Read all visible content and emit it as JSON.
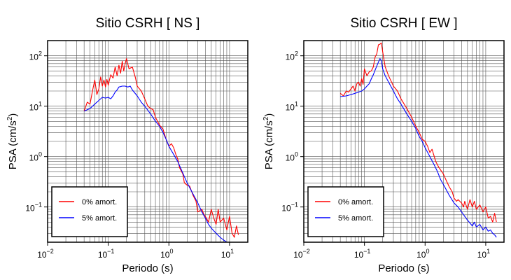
{
  "chart_data": [
    {
      "type": "line",
      "title": "Sitio CSRH [ NS ]",
      "xlabel": "Periodo (s)",
      "ylabel": "PSA (cm/s2)",
      "xscale": "log",
      "yscale": "log",
      "xlim": [
        0.01,
        20
      ],
      "ylim": [
        0.02,
        200
      ],
      "grid": true,
      "legend_position": "bottom-left",
      "xticks": [
        {
          "base": "10",
          "exp": "−2"
        },
        {
          "base": "10",
          "exp": "−1"
        },
        {
          "base": "10",
          "exp": "0"
        },
        {
          "base": "10",
          "exp": "1"
        }
      ],
      "yticks": [
        {
          "base": "10",
          "exp": "−1"
        },
        {
          "base": "10",
          "exp": "0"
        },
        {
          "base": "10",
          "exp": "1"
        },
        {
          "base": "10",
          "exp": "2"
        }
      ],
      "series": [
        {
          "name": "0% amort.",
          "color": "#ff0000",
          "points": [
            [
              0.04,
              8
            ],
            [
              0.045,
              12
            ],
            [
              0.05,
              11
            ],
            [
              0.055,
              20
            ],
            [
              0.06,
              33
            ],
            [
              0.065,
              17
            ],
            [
              0.07,
              22
            ],
            [
              0.075,
              38
            ],
            [
              0.08,
              25
            ],
            [
              0.085,
              33
            ],
            [
              0.09,
              24
            ],
            [
              0.095,
              34
            ],
            [
              0.1,
              26
            ],
            [
              0.11,
              42
            ],
            [
              0.12,
              36
            ],
            [
              0.13,
              60
            ],
            [
              0.14,
              40
            ],
            [
              0.15,
              65
            ],
            [
              0.16,
              45
            ],
            [
              0.17,
              78
            ],
            [
              0.18,
              50
            ],
            [
              0.19,
              70
            ],
            [
              0.2,
              88
            ],
            [
              0.22,
              55
            ],
            [
              0.25,
              60
            ],
            [
              0.28,
              37
            ],
            [
              0.3,
              25
            ],
            [
              0.35,
              20
            ],
            [
              0.4,
              14
            ],
            [
              0.45,
              10
            ],
            [
              0.5,
              9
            ],
            [
              0.55,
              8.5
            ],
            [
              0.6,
              6
            ],
            [
              0.65,
              5
            ],
            [
              0.7,
              4.2
            ],
            [
              0.8,
              3.5
            ],
            [
              0.9,
              2.2
            ],
            [
              1.0,
              1.6
            ],
            [
              1.1,
              1.8
            ],
            [
              1.2,
              1.5
            ],
            [
              1.3,
              1.1
            ],
            [
              1.4,
              0.9
            ],
            [
              1.5,
              0.6
            ],
            [
              1.7,
              0.45
            ],
            [
              1.8,
              0.3
            ],
            [
              2.0,
              0.27
            ],
            [
              2.2,
              0.26
            ],
            [
              2.5,
              0.17
            ],
            [
              2.8,
              0.13
            ],
            [
              3.0,
              0.08
            ],
            [
              3.5,
              0.09
            ],
            [
              3.8,
              0.07
            ],
            [
              4.0,
              0.065
            ],
            [
              4.5,
              0.05
            ],
            [
              5.0,
              0.09
            ],
            [
              5.5,
              0.06
            ],
            [
              6.0,
              0.045
            ],
            [
              6.5,
              0.09
            ],
            [
              7.0,
              0.05
            ],
            [
              8.0,
              0.06
            ],
            [
              9.0,
              0.035
            ],
            [
              10,
              0.065
            ],
            [
              11,
              0.03
            ],
            [
              12,
              0.025
            ],
            [
              13,
              0.042
            ],
            [
              14,
              0.028
            ]
          ]
        },
        {
          "name": "5% amort.",
          "color": "#0000ff",
          "points": [
            [
              0.04,
              8
            ],
            [
              0.05,
              9
            ],
            [
              0.06,
              11
            ],
            [
              0.07,
              13
            ],
            [
              0.08,
              15
            ],
            [
              0.09,
              14.5
            ],
            [
              0.1,
              15
            ],
            [
              0.11,
              14
            ],
            [
              0.12,
              16
            ],
            [
              0.13,
              19
            ],
            [
              0.14,
              21
            ],
            [
              0.15,
              24
            ],
            [
              0.17,
              25
            ],
            [
              0.19,
              25
            ],
            [
              0.21,
              24
            ],
            [
              0.23,
              25
            ],
            [
              0.25,
              21
            ],
            [
              0.3,
              16
            ],
            [
              0.35,
              12
            ],
            [
              0.4,
              10
            ],
            [
              0.5,
              7
            ],
            [
              0.6,
              5
            ],
            [
              0.7,
              4
            ],
            [
              0.8,
              3
            ],
            [
              0.9,
              2.2
            ],
            [
              1.0,
              1.6
            ],
            [
              1.2,
              1.1
            ],
            [
              1.4,
              0.8
            ],
            [
              1.6,
              0.55
            ],
            [
              1.8,
              0.4
            ],
            [
              2.0,
              0.3
            ],
            [
              2.5,
              0.18
            ],
            [
              3.0,
              0.12
            ],
            [
              3.5,
              0.08
            ],
            [
              4.0,
              0.06
            ],
            [
              4.5,
              0.045
            ],
            [
              5.0,
              0.038
            ],
            [
              6.0,
              0.03
            ],
            [
              7.0,
              0.025
            ],
            [
              8.0,
              0.022
            ],
            [
              9.0,
              0.02
            ]
          ]
        }
      ]
    },
    {
      "type": "line",
      "title": "Sitio CSRH [ EW ]",
      "xlabel": "Periodo (s)",
      "ylabel": "PSA (cm/s2)",
      "xscale": "log",
      "yscale": "log",
      "xlim": [
        0.01,
        20
      ],
      "ylim": [
        0.02,
        200
      ],
      "grid": true,
      "legend_position": "bottom-left",
      "xticks": [
        {
          "base": "10",
          "exp": "−2"
        },
        {
          "base": "10",
          "exp": "−1"
        },
        {
          "base": "10",
          "exp": "0"
        },
        {
          "base": "10",
          "exp": "1"
        }
      ],
      "yticks": [
        {
          "base": "10",
          "exp": "−1"
        },
        {
          "base": "10",
          "exp": "0"
        },
        {
          "base": "10",
          "exp": "1"
        },
        {
          "base": "10",
          "exp": "2"
        }
      ],
      "series": [
        {
          "name": "0% amort.",
          "color": "#ff0000",
          "points": [
            [
              0.04,
              18
            ],
            [
              0.045,
              16
            ],
            [
              0.05,
              20
            ],
            [
              0.055,
              19
            ],
            [
              0.06,
              22
            ],
            [
              0.065,
              25
            ],
            [
              0.07,
              20
            ],
            [
              0.075,
              28
            ],
            [
              0.08,
              30
            ],
            [
              0.085,
              25
            ],
            [
              0.09,
              35
            ],
            [
              0.095,
              27
            ],
            [
              0.1,
              55
            ],
            [
              0.11,
              40
            ],
            [
              0.12,
              48
            ],
            [
              0.13,
              50
            ],
            [
              0.14,
              60
            ],
            [
              0.15,
              95
            ],
            [
              0.16,
              110
            ],
            [
              0.17,
              165
            ],
            [
              0.18,
              170
            ],
            [
              0.19,
              180
            ],
            [
              0.2,
              120
            ],
            [
              0.22,
              60
            ],
            [
              0.25,
              40
            ],
            [
              0.28,
              30
            ],
            [
              0.3,
              25
            ],
            [
              0.35,
              20
            ],
            [
              0.4,
              14
            ],
            [
              0.5,
              9
            ],
            [
              0.6,
              6
            ],
            [
              0.7,
              4
            ],
            [
              0.8,
              3
            ],
            [
              0.9,
              2.2
            ],
            [
              1.0,
              2.0
            ],
            [
              1.1,
              1.6
            ],
            [
              1.2,
              1.2
            ],
            [
              1.3,
              1.4
            ],
            [
              1.5,
              0.8
            ],
            [
              1.7,
              0.6
            ],
            [
              2.0,
              0.45
            ],
            [
              2.2,
              0.35
            ],
            [
              2.5,
              0.25
            ],
            [
              2.8,
              0.2
            ],
            [
              3.0,
              0.15
            ],
            [
              3.3,
              0.13
            ],
            [
              3.5,
              0.14
            ],
            [
              4.0,
              0.12
            ],
            [
              4.3,
              0.1
            ],
            [
              4.5,
              0.13
            ],
            [
              5.0,
              0.09
            ],
            [
              5.5,
              0.14
            ],
            [
              6.0,
              0.1
            ],
            [
              6.5,
              0.13
            ],
            [
              7.0,
              0.09
            ],
            [
              8.0,
              0.11
            ],
            [
              9.0,
              0.08
            ],
            [
              10,
              0.1
            ],
            [
              11,
              0.06
            ],
            [
              12,
              0.065
            ],
            [
              13,
              0.05
            ],
            [
              14,
              0.075
            ],
            [
              15,
              0.05
            ]
          ]
        },
        {
          "name": "5% amort.",
          "color": "#0000ff",
          "points": [
            [
              0.04,
              15.5
            ],
            [
              0.05,
              16
            ],
            [
              0.06,
              17
            ],
            [
              0.07,
              18
            ],
            [
              0.08,
              19
            ],
            [
              0.09,
              20
            ],
            [
              0.1,
              22
            ],
            [
              0.11,
              25
            ],
            [
              0.12,
              28
            ],
            [
              0.13,
              35
            ],
            [
              0.14,
              42
            ],
            [
              0.15,
              52
            ],
            [
              0.17,
              75
            ],
            [
              0.18,
              88
            ],
            [
              0.19,
              80
            ],
            [
              0.2,
              55
            ],
            [
              0.22,
              40
            ],
            [
              0.25,
              30
            ],
            [
              0.3,
              20
            ],
            [
              0.35,
              14
            ],
            [
              0.4,
              11
            ],
            [
              0.5,
              7
            ],
            [
              0.6,
              5
            ],
            [
              0.7,
              3.6
            ],
            [
              0.8,
              2.5
            ],
            [
              0.9,
              2.0
            ],
            [
              1.0,
              1.5
            ],
            [
              1.2,
              1.0
            ],
            [
              1.4,
              0.7
            ],
            [
              1.6,
              0.5
            ],
            [
              1.8,
              0.35
            ],
            [
              2.0,
              0.28
            ],
            [
              2.5,
              0.17
            ],
            [
              3.0,
              0.12
            ],
            [
              3.5,
              0.1
            ],
            [
              4.0,
              0.08
            ],
            [
              4.5,
              0.065
            ],
            [
              5.0,
              0.055
            ],
            [
              5.5,
              0.048
            ],
            [
              6.0,
              0.042
            ],
            [
              6.5,
              0.05
            ],
            [
              7.0,
              0.04
            ],
            [
              8.0,
              0.045
            ],
            [
              9.0,
              0.035
            ],
            [
              10,
              0.04
            ],
            [
              11,
              0.033
            ],
            [
              12,
              0.035
            ],
            [
              13,
              0.03
            ],
            [
              14,
              0.028
            ],
            [
              15,
              0.025
            ]
          ]
        }
      ]
    }
  ]
}
